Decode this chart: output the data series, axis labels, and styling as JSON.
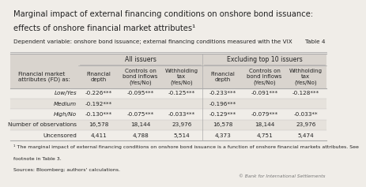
{
  "title_line1": "Marginal impact of external financing conditions on onshore bond issuance:",
  "title_line2": "effects of onshore financial market attributes¹",
  "subtitle": "Dependent variable: onshore bond issuance; external financing conditions measured with the VIX",
  "table_label": "Table 4",
  "group1_header": "All issuers",
  "group2_header": "Excluding top 10 issuers",
  "col_headers_g1": [
    "Financial\ndepth",
    "Controls on\nbond inflows\n(Yes/No)",
    "Withholding\ntax\n(Yes/No)"
  ],
  "col_headers_g2": [
    "Financial\ndepth",
    "Controls on\nbond inflows\n(Yes/No)",
    "Withholding\ntax\n(Yes/No)"
  ],
  "row_label_header": "Financial market\nattributes (FD) as:",
  "row_labels": [
    "Low/Yes",
    "Medium",
    "High/No",
    "Number of observations",
    "Uncensored"
  ],
  "row_italic": [
    true,
    true,
    true,
    false,
    false
  ],
  "data": [
    [
      "-0.226***",
      "-0.095***",
      "-0.125***",
      "-0.233***",
      "-0.091***",
      "-0.128***"
    ],
    [
      "-0.192***",
      "",
      "",
      "-0.196***",
      "",
      ""
    ],
    [
      "-0.130***",
      "-0.075***",
      "-0.033***",
      "-0.129***",
      "-0.079***",
      "-0.033**"
    ],
    [
      "16,578",
      "18,144",
      "23,976",
      "16,578",
      "18,144",
      "23,976"
    ],
    [
      "4,411",
      "4,788",
      "5,514",
      "4,373",
      "4,751",
      "5,474"
    ]
  ],
  "footnote1": "¹ The marginal impact of external financing conditions on onshore bond issuance is a function of onshore financial markets attributes. See",
  "footnote2": "footnote in Table 3.",
  "footnote3": "Sources: Bloomberg; authors' calculations.",
  "copyright": "© Bank for International Settlements",
  "bg_color": "#f0ede8",
  "header_bg": "#d9d4ce",
  "alt_row_bg": "#e6e2dc",
  "border_color": "#aaaaaa",
  "text_color": "#222222",
  "title_fontsize": 7.2,
  "body_fontsize": 5.6,
  "small_fontsize": 5.2
}
